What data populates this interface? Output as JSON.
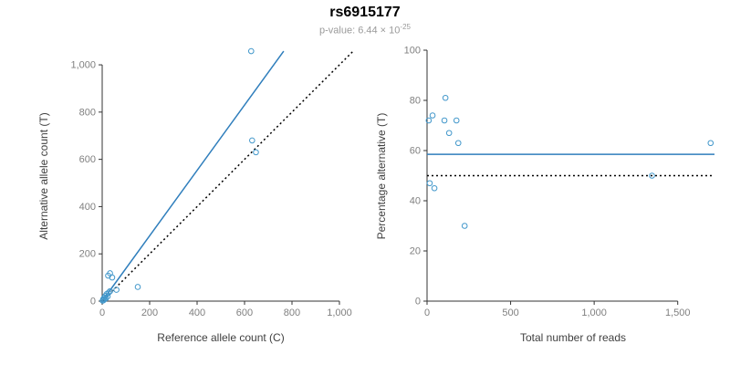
{
  "header": {
    "title": "rs6915177",
    "p_value_text": "p-value: 6.44 × 10",
    "p_value_exponent": "-25"
  },
  "colors": {
    "point": "#4398cb",
    "fit_line": "#2f7ebc",
    "identity_line": "#000000",
    "axis": "#333333",
    "tick_label": "#808080"
  },
  "chart_data": [
    {
      "name": "allele-counts",
      "type": "scatter",
      "xlabel": "Reference allele count (C)",
      "ylabel": "Alternative allele count (T)",
      "xlim": [
        0,
        1077
      ],
      "ylim": [
        0,
        1062
      ],
      "grid": false,
      "legend": "none",
      "xticks": [
        0,
        200,
        400,
        600,
        800,
        1000
      ],
      "xtick_labels": [
        "0",
        "200",
        "400",
        "600",
        "800",
        "1,000"
      ],
      "yticks": [
        0,
        200,
        400,
        600,
        800,
        1000
      ],
      "ytick_labels": [
        "0",
        "200",
        "400",
        "600",
        "800",
        "1,000"
      ],
      "points": [
        [
          2,
          2
        ],
        [
          4,
          8
        ],
        [
          6,
          4
        ],
        [
          8,
          14
        ],
        [
          10,
          8
        ],
        [
          13,
          22
        ],
        [
          16,
          12
        ],
        [
          19,
          30
        ],
        [
          23,
          20
        ],
        [
          27,
          36
        ],
        [
          33,
          42
        ],
        [
          25,
          108
        ],
        [
          33,
          118
        ],
        [
          42,
          100
        ],
        [
          60,
          48
        ],
        [
          150,
          60
        ],
        [
          628,
          1058
        ],
        [
          632,
          680
        ],
        [
          648,
          630
        ]
      ],
      "lines": [
        {
          "name": "regression-line",
          "style": "solid",
          "color": "#2f7ebc",
          "from": [
            0,
            0
          ],
          "to": [
            765,
            1058
          ]
        },
        {
          "name": "identity-line",
          "style": "dotted",
          "color": "#000000",
          "from": [
            0,
            0
          ],
          "to": [
            1062,
            1062
          ]
        }
      ]
    },
    {
      "name": "percentage-alternative",
      "type": "scatter",
      "xlabel": "Total number of reads",
      "ylabel": "Percentage alternative (T)",
      "xlim": [
        0,
        1720
      ],
      "ylim": [
        0,
        100
      ],
      "grid": false,
      "legend": "none",
      "xticks": [
        0,
        500,
        1000,
        1500
      ],
      "xtick_labels": [
        "0",
        "500",
        "1,000",
        "1,500"
      ],
      "yticks": [
        0,
        20,
        40,
        60,
        80,
        100
      ],
      "ytick_labels": [
        "0",
        "20",
        "40",
        "60",
        "80",
        "100"
      ],
      "points": [
        [
          10,
          72
        ],
        [
          33,
          74
        ],
        [
          16,
          47
        ],
        [
          44,
          45
        ],
        [
          104,
          72
        ],
        [
          110,
          81
        ],
        [
          132,
          67
        ],
        [
          176,
          72
        ],
        [
          187,
          63
        ],
        [
          225,
          30
        ],
        [
          1346,
          50
        ],
        [
          1697,
          63
        ]
      ],
      "lines": [
        {
          "name": "mean-line",
          "style": "solid",
          "color": "#2f7ebc",
          "from": [
            0,
            58.5
          ],
          "to": [
            1720,
            58.5
          ]
        },
        {
          "name": "expected-line",
          "style": "dotted",
          "color": "#000000",
          "from": [
            0,
            50
          ],
          "to": [
            1720,
            50
          ]
        }
      ]
    }
  ]
}
